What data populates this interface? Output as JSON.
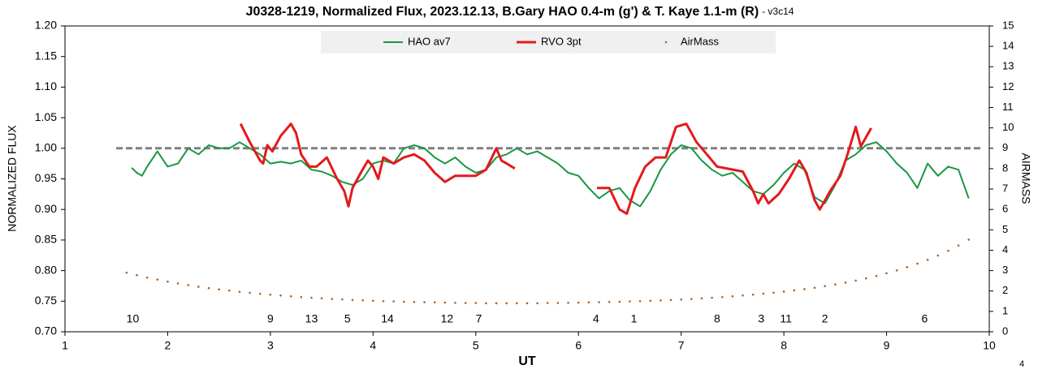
{
  "chart_data": {
    "type": "line",
    "title": "J0328-1219, Normalized Flux, 2023.12.13, B.Gary HAO 0.4-m (g') & T. Kaye 1.1-m (R)",
    "subtitle": "- v3c14",
    "x_label": "UT",
    "y_label": "NORMALIZED FLUX",
    "y2_label": "AIRMASS",
    "corner_note": "4",
    "xlim": [
      1,
      10
    ],
    "xticks": [
      1,
      2,
      3,
      4,
      5,
      6,
      7,
      8,
      9,
      10
    ],
    "ylim": [
      0.7,
      1.2
    ],
    "yticks": [
      {
        "value": 0.7,
        "label": "0.70"
      },
      {
        "value": 0.75,
        "label": "0.75"
      },
      {
        "value": 0.8,
        "label": "0.80"
      },
      {
        "value": 0.85,
        "label": "0.85"
      },
      {
        "value": 0.9,
        "label": "0.90"
      },
      {
        "value": 0.95,
        "label": "0.95"
      },
      {
        "value": 1.0,
        "label": "1.00"
      },
      {
        "value": 1.05,
        "label": "1.05"
      },
      {
        "value": 1.1,
        "label": "1.10"
      },
      {
        "value": 1.15,
        "label": "1.15"
      },
      {
        "value": 1.2,
        "label": "1.20"
      }
    ],
    "y2lim": [
      0,
      15
    ],
    "y2ticks": [
      0,
      1,
      2,
      3,
      4,
      5,
      6,
      7,
      8,
      9,
      10,
      11,
      12,
      13,
      14,
      15
    ],
    "grid": false,
    "reference_line": {
      "value": 1.0,
      "color": "#808080"
    },
    "series": [
      {
        "name": "HAO av7",
        "color": "#1a9641",
        "kind": "line",
        "width": 2,
        "x": [
          1.65,
          1.7,
          1.75,
          1.8,
          1.9,
          2.0,
          2.1,
          2.2,
          2.3,
          2.4,
          2.5,
          2.6,
          2.7,
          2.8,
          2.9,
          3.0,
          3.1,
          3.2,
          3.3,
          3.4,
          3.5,
          3.6,
          3.7,
          3.8,
          3.9,
          4.0,
          4.1,
          4.2,
          4.3,
          4.4,
          4.5,
          4.6,
          4.7,
          4.8,
          4.9,
          5.0,
          5.1,
          5.2,
          5.3,
          5.4,
          5.5,
          5.6,
          5.7,
          5.8,
          5.9,
          6.0,
          6.1,
          6.2,
          6.3,
          6.4,
          6.5,
          6.6,
          6.7,
          6.8,
          6.9,
          7.0,
          7.1,
          7.2,
          7.3,
          7.4,
          7.5,
          7.6,
          7.7,
          7.8,
          7.9,
          8.0,
          8.1,
          8.2,
          8.3,
          8.4,
          8.5,
          8.6,
          8.7,
          8.8,
          8.9,
          9.0,
          9.1,
          9.2,
          9.3,
          9.4,
          9.5,
          9.6,
          9.7,
          9.8
        ],
        "values": [
          0.968,
          0.96,
          0.955,
          0.97,
          0.995,
          0.97,
          0.975,
          1.0,
          0.99,
          1.005,
          1.0,
          1.0,
          1.01,
          1.0,
          0.99,
          0.975,
          0.978,
          0.975,
          0.98,
          0.965,
          0.962,
          0.955,
          0.945,
          0.94,
          0.95,
          0.975,
          0.98,
          0.975,
          1.0,
          1.005,
          1.0,
          0.985,
          0.975,
          0.985,
          0.97,
          0.96,
          0.965,
          0.985,
          0.99,
          1.0,
          0.99,
          0.995,
          0.985,
          0.975,
          0.96,
          0.955,
          0.935,
          0.918,
          0.93,
          0.935,
          0.915,
          0.905,
          0.93,
          0.965,
          0.99,
          1.005,
          1.0,
          0.98,
          0.965,
          0.955,
          0.96,
          0.945,
          0.93,
          0.925,
          0.94,
          0.96,
          0.975,
          0.965,
          0.92,
          0.91,
          0.94,
          0.98,
          0.99,
          1.005,
          1.01,
          0.995,
          0.975,
          0.96,
          0.935,
          0.975,
          0.955,
          0.97,
          0.965,
          0.918
        ]
      },
      {
        "name": "RVO 3pt",
        "color": "#e31a1c",
        "kind": "line",
        "width": 3,
        "x": [
          2.71,
          2.8,
          2.9,
          2.93,
          2.97,
          3.02,
          3.1,
          3.2,
          3.25,
          3.3,
          3.38,
          3.45,
          3.55,
          3.65,
          3.72,
          3.76,
          3.8,
          3.88,
          3.95,
          4.0,
          4.05,
          4.1,
          4.2,
          4.3,
          4.4,
          4.5,
          4.6,
          4.7,
          4.8,
          4.9,
          5.0,
          5.1,
          5.2,
          5.25,
          5.3,
          5.38,
          5.8,
          6.18,
          6.3,
          6.4,
          6.47,
          6.55,
          6.65,
          6.75,
          6.85,
          6.95,
          7.05,
          7.15,
          7.25,
          7.35,
          7.6,
          7.7,
          7.75,
          7.8,
          7.85,
          7.95,
          8.05,
          8.15,
          8.22,
          8.3,
          8.35,
          8.45,
          8.55,
          8.62,
          8.7,
          8.75,
          8.85
        ],
        "values": [
          1.04,
          1.01,
          0.98,
          0.975,
          1.005,
          0.995,
          1.02,
          1.04,
          1.025,
          0.99,
          0.97,
          0.97,
          0.985,
          0.95,
          0.93,
          0.905,
          0.935,
          0.96,
          0.98,
          0.97,
          0.95,
          0.985,
          0.975,
          0.985,
          0.99,
          0.98,
          0.96,
          0.945,
          0.955,
          0.955,
          0.955,
          0.965,
          1.0,
          0.98,
          0.975,
          0.967,
          null,
          0.935,
          0.935,
          0.9,
          0.893,
          0.935,
          0.97,
          0.985,
          0.985,
          1.035,
          1.04,
          1.01,
          0.99,
          0.97,
          0.962,
          0.93,
          0.91,
          0.925,
          0.91,
          0.925,
          0.95,
          0.98,
          0.96,
          0.915,
          0.9,
          0.93,
          0.955,
          0.99,
          1.035,
          1.003,
          1.033
        ]
      },
      {
        "name": "AirMass",
        "color": "#b06020",
        "kind": "dots",
        "axis": "y2",
        "x": [
          1.6,
          1.7,
          1.8,
          1.9,
          2.0,
          2.1,
          2.2,
          2.3,
          2.4,
          2.5,
          2.6,
          2.7,
          2.8,
          2.9,
          3.0,
          3.1,
          3.2,
          3.3,
          3.4,
          3.5,
          3.6,
          3.7,
          3.8,
          3.9,
          4.0,
          4.1,
          4.2,
          4.3,
          4.4,
          4.5,
          4.6,
          4.7,
          4.8,
          4.9,
          5.0,
          5.1,
          5.2,
          5.3,
          5.4,
          5.5,
          5.6,
          5.7,
          5.8,
          5.9,
          6.0,
          6.1,
          6.2,
          6.3,
          6.4,
          6.5,
          6.6,
          6.7,
          6.8,
          6.9,
          7.0,
          7.1,
          7.2,
          7.3,
          7.4,
          7.5,
          7.6,
          7.7,
          7.8,
          7.9,
          8.0,
          8.1,
          8.2,
          8.3,
          8.4,
          8.5,
          8.6,
          8.7,
          8.8,
          8.9,
          9.0,
          9.1,
          9.2,
          9.3,
          9.4,
          9.5,
          9.6,
          9.7,
          9.8
        ],
        "values": [
          2.9,
          2.78,
          2.66,
          2.56,
          2.46,
          2.37,
          2.29,
          2.21,
          2.14,
          2.08,
          2.02,
          1.96,
          1.91,
          1.86,
          1.82,
          1.78,
          1.74,
          1.7,
          1.67,
          1.64,
          1.61,
          1.59,
          1.56,
          1.54,
          1.52,
          1.5,
          1.49,
          1.47,
          1.46,
          1.45,
          1.44,
          1.43,
          1.42,
          1.41,
          1.41,
          1.4,
          1.4,
          1.4,
          1.4,
          1.4,
          1.4,
          1.41,
          1.41,
          1.42,
          1.43,
          1.44,
          1.45,
          1.46,
          1.47,
          1.49,
          1.5,
          1.52,
          1.54,
          1.56,
          1.58,
          1.61,
          1.64,
          1.67,
          1.7,
          1.74,
          1.78,
          1.82,
          1.87,
          1.92,
          1.97,
          2.03,
          2.09,
          2.16,
          2.24,
          2.32,
          2.41,
          2.51,
          2.62,
          2.74,
          2.87,
          3.01,
          3.17,
          3.34,
          3.53,
          3.74,
          3.97,
          4.23,
          4.52
        ]
      }
    ],
    "annotations": [
      {
        "text": "10",
        "x": 1.66
      },
      {
        "text": "9",
        "x": 3.0
      },
      {
        "text": "13",
        "x": 3.4
      },
      {
        "text": "5",
        "x": 3.75
      },
      {
        "text": "14",
        "x": 4.14
      },
      {
        "text": "12",
        "x": 4.72
      },
      {
        "text": "7",
        "x": 5.03
      },
      {
        "text": "4",
        "x": 6.17
      },
      {
        "text": "1",
        "x": 6.54
      },
      {
        "text": "8",
        "x": 7.35
      },
      {
        "text": "3",
        "x": 7.78
      },
      {
        "text": "11",
        "x": 8.02
      },
      {
        "text": "2",
        "x": 8.4
      },
      {
        "text": "6",
        "x": 9.37
      }
    ]
  }
}
